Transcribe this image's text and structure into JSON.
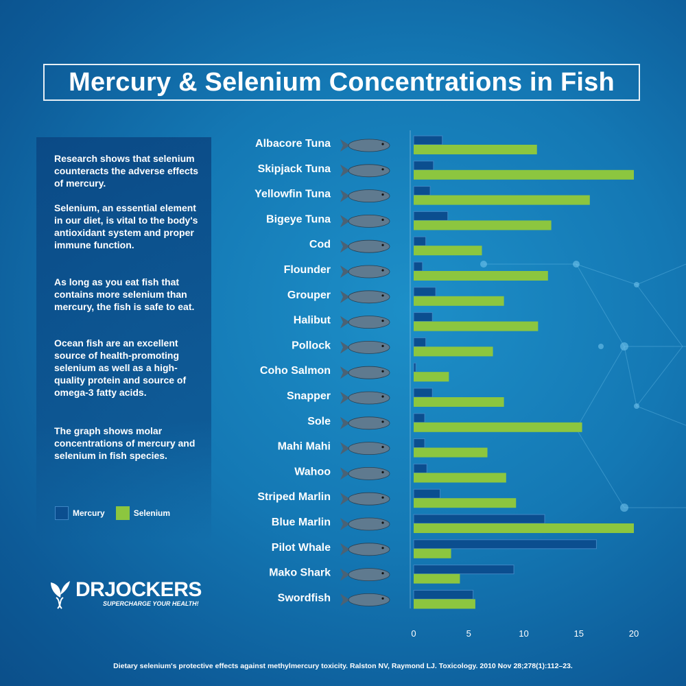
{
  "title": "Mercury & Selenium Concentrations in Fish",
  "info_paragraphs": [
    "Research shows that selenium counteracts the adverse effects of mercury.",
    "Selenium, an essential element in our diet, is vital to the body's antioxidant system and proper immune function.",
    "As long as you eat fish that contains more selenium than mercury, the fish is safe to eat.",
    "Ocean fish are an excellent source of health-promoting selenium as well as a high-quality protein and source of omega-3 fatty acids.",
    "The graph shows molar concentrations of mercury and selenium in fish species."
  ],
  "legend": {
    "mercury": "Mercury",
    "selenium": "Selenium"
  },
  "logo": {
    "name": "DRJOCKERS",
    "tagline": "SUPERCHARGE YOUR HEALTH!"
  },
  "citation": "Dietary selenium's protective effects against methylmercury toxicity. Ralston NV, Raymond LJ. Toxicology. 2010 Nov 28;278(1):112–23.",
  "colors": {
    "mercury": "#0b4e8f",
    "mercury_border": "#3f86c4",
    "selenium": "#8cc63f",
    "background": "#1478b4"
  },
  "chart_data": {
    "type": "bar",
    "orientation": "horizontal",
    "categories": [
      "Albacore Tuna",
      "Skipjack Tuna",
      "Yellowfin Tuna",
      "Bigeye Tuna",
      "Cod",
      "Flounder",
      "Grouper",
      "Halibut",
      "Pollock",
      "Coho Salmon",
      "Snapper",
      "Sole",
      "Mahi Mahi",
      "Wahoo",
      "Striped Marlin",
      "Blue Marlin",
      "Pilot Whale",
      "Mako Shark",
      "Swordfish"
    ],
    "series": [
      {
        "name": "Mercury",
        "values": [
          2.6,
          1.8,
          1.5,
          3.1,
          1.1,
          0.8,
          2.0,
          1.7,
          1.1,
          0.2,
          1.7,
          1.0,
          1.0,
          1.2,
          2.4,
          11.9,
          16.6,
          9.1,
          5.4
        ]
      },
      {
        "name": "Selenium",
        "values": [
          11.2,
          20.0,
          16.0,
          12.5,
          6.2,
          12.2,
          8.2,
          11.3,
          7.2,
          3.2,
          8.2,
          15.3,
          6.7,
          8.4,
          9.3,
          20.0,
          3.4,
          4.2,
          5.6
        ]
      }
    ],
    "xlim": [
      0,
      20
    ],
    "xticks": [
      "0",
      "5",
      "10",
      "15",
      "20"
    ],
    "legend_position": "left-bottom",
    "grid": false
  }
}
